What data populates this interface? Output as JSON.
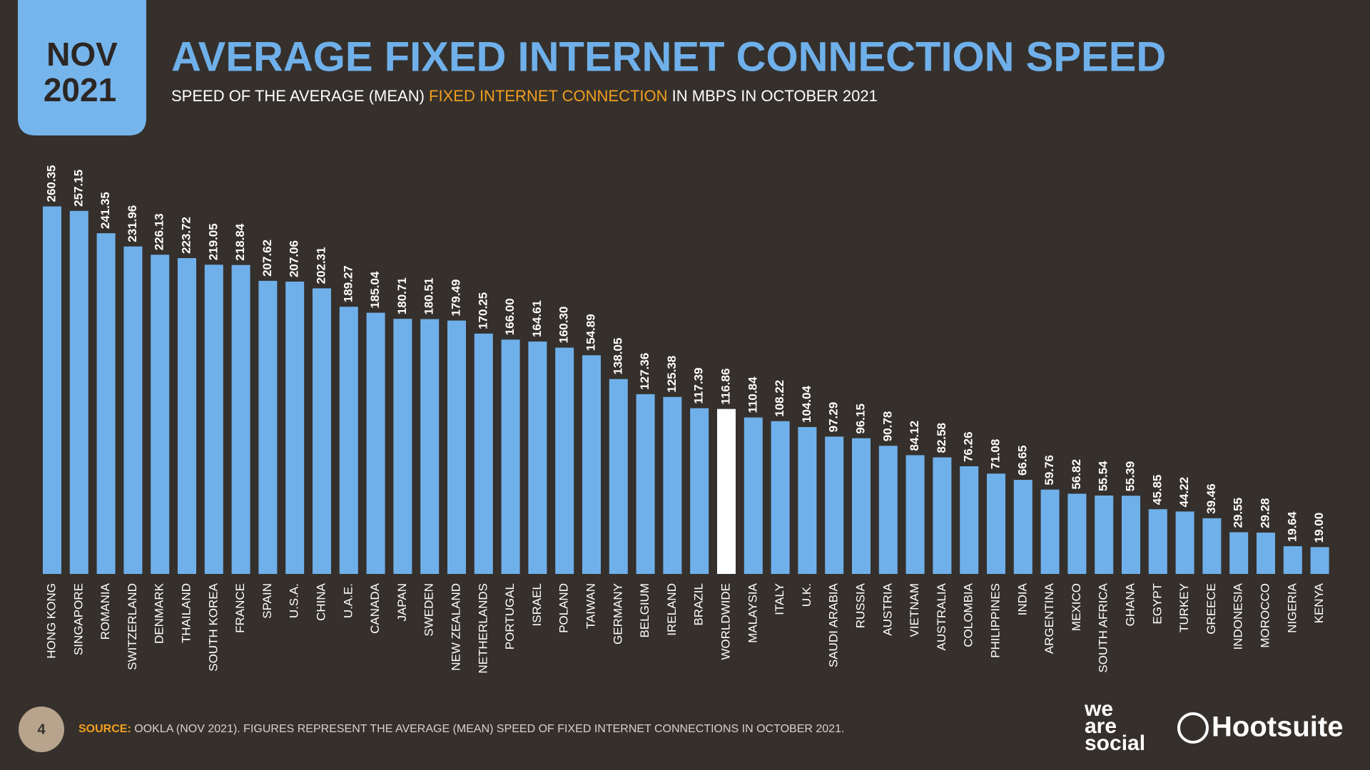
{
  "header": {
    "badge_month": "NOV",
    "badge_year": "2021",
    "subtitle_parts": [
      "SPEED OF THE AVERAGE (MEAN) ",
      "FIXED INTERNET CONNECTION",
      " IN MBPS IN OCTOBER 2021"
    ]
  },
  "chart_data": {
    "type": "bar",
    "title": "AVERAGE FIXED INTERNET CONNECTION SPEED",
    "color": "#6fb0ea",
    "highlight": {
      "category": "WORLDWIDE",
      "color": "#ffffff"
    },
    "categories": [
      "HONG KONG",
      "SINGAPORE",
      "ROMANIA",
      "SWITZERLAND",
      "DENMARK",
      "THAILAND",
      "SOUTH KOREA",
      "FRANCE",
      "SPAIN",
      "U.S.A.",
      "CHINA",
      "U.A.E.",
      "CANADA",
      "JAPAN",
      "SWEDEN",
      "NEW ZEALAND",
      "NETHERLANDS",
      "PORTUGAL",
      "ISRAEL",
      "POLAND",
      "TAIWAN",
      "GERMANY",
      "BELGIUM",
      "IRELAND",
      "BRAZIL",
      "WORLDWIDE",
      "MALAYSIA",
      "ITALY",
      "U.K.",
      "SAUDI ARABIA",
      "RUSSIA",
      "AUSTRIA",
      "VIETNAM",
      "AUSTRALIA",
      "COLOMBIA",
      "PHILIPPINES",
      "INDIA",
      "ARGENTINA",
      "MEXICO",
      "SOUTH AFRICA",
      "GHANA",
      "EGYPT",
      "TURKEY",
      "GREECE",
      "INDONESIA",
      "MOROCCO",
      "NIGERIA",
      "KENYA"
    ],
    "values": [
      260.35,
      257.15,
      241.35,
      231.96,
      226.13,
      223.72,
      219.05,
      218.84,
      207.62,
      207.06,
      202.31,
      189.27,
      185.04,
      180.71,
      180.51,
      179.49,
      170.25,
      166,
      164.61,
      160.3,
      154.89,
      138.05,
      127.36,
      125.38,
      117.39,
      116.86,
      110.84,
      108.22,
      104.04,
      97.29,
      96.15,
      90.78,
      84.12,
      82.58,
      76.26,
      71.08,
      66.65,
      59.76,
      56.82,
      55.54,
      55.39,
      45.85,
      44.22,
      39.46,
      29.55,
      29.28,
      19.64,
      19
    ],
    "value_labels": [
      "260.35",
      "257.15",
      "241.35",
      "231.96",
      "226.13",
      "223.72",
      "219.05",
      "218.84",
      "207.62",
      "207.06",
      "202.31",
      "189.27",
      "185.04",
      "180.71",
      "180.51",
      "179.49",
      "170.25",
      "166.00",
      "164.61",
      "160.30",
      "154.89",
      "138.05",
      "127.36",
      "125.38",
      "117.39",
      "116.86",
      "110.84",
      "108.22",
      "104.04",
      "97.29",
      "96.15",
      "90.78",
      "84.12",
      "82.58",
      "76.26",
      "71.08",
      "66.65",
      "59.76",
      "56.82",
      "55.54",
      "55.39",
      "45.85",
      "44.22",
      "39.46",
      "29.55",
      "29.28",
      "19.64",
      "19.00"
    ]
  },
  "footer": {
    "page_number": "4",
    "source_label": "SOURCE:",
    "source_text": " OOKLA (NOV 2021). FIGURES REPRESENT THE AVERAGE (MEAN) SPEED OF FIXED INTERNET CONNECTIONS IN OCTOBER 2021.",
    "logo_we": "we",
    "logo_are": "are",
    "logo_social": "social",
    "logo_hootsuite": "Hootsuite"
  }
}
